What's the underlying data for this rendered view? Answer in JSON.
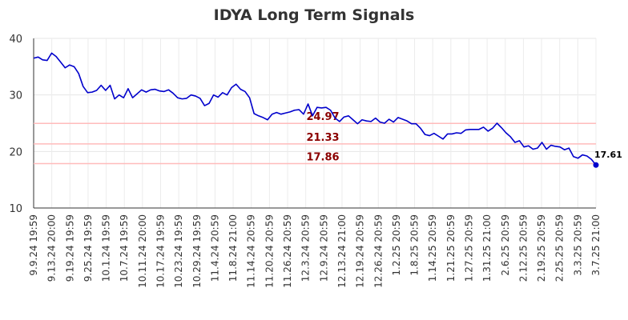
{
  "chart_data": {
    "type": "line",
    "title": "IDYA Long Term Signals",
    "xlabel": "",
    "ylabel": "",
    "ylim": [
      10,
      40
    ],
    "yticks": [
      10,
      20,
      30,
      40
    ],
    "grid": true,
    "xtick_labels": [
      "9.9.24 19:59",
      "9.13.24 20:00",
      "9.19.24 19:59",
      "9.25.24 19:59",
      "10.1.24 19:59",
      "10.7.24 19:59",
      "10.11.24 20:00",
      "10.17.24 19:59",
      "10.23.24 19:59",
      "10.29.24 19:59",
      "11.4.24 20:59",
      "11.8.24 21:00",
      "11.14.24 20:59",
      "11.20.24 20:59",
      "11.26.24 20:59",
      "12.3.24 20:59",
      "12.9.24 20:59",
      "12.13.24 21:00",
      "12.19.24 20:59",
      "12.26.24 20:59",
      "1.2.25 20:59",
      "1.8.25 20:59",
      "1.14.25 20:59",
      "1.21.25 20:59",
      "1.27.25 20:59",
      "1.31.25 21:00",
      "2.6.25 20:59",
      "2.12.25 20:59",
      "2.19.25 20:59",
      "2.25.25 20:59",
      "3.3.25 20:59",
      "3.7.25 21:00"
    ],
    "series": [
      {
        "color": "#0000cc",
        "values": [
          36.5,
          36.7,
          36.2,
          36.1,
          37.4,
          36.8,
          35.8,
          34.8,
          35.3,
          35.0,
          33.8,
          31.5,
          30.4,
          30.5,
          30.8,
          31.7,
          30.8,
          31.7,
          29.3,
          30.0,
          29.5,
          31.1,
          29.5,
          30.2,
          30.9,
          30.5,
          30.9,
          31.0,
          30.7,
          30.6,
          30.9,
          30.3,
          29.5,
          29.3,
          29.4,
          30.0,
          29.8,
          29.4,
          28.1,
          28.5,
          30.0,
          29.6,
          30.4,
          30.0,
          31.3,
          31.9,
          31.0,
          30.6,
          29.5,
          26.7,
          26.3,
          26.0,
          25.6,
          26.6,
          26.9,
          26.6,
          26.8,
          27.0,
          27.3,
          27.4,
          26.6,
          28.4,
          26.3,
          27.8,
          27.7,
          27.8,
          27.3,
          25.9,
          25.3,
          26.1,
          26.3,
          25.6,
          24.9,
          25.6,
          25.4,
          25.3,
          25.9,
          25.2,
          25.0,
          25.7,
          25.2,
          26.0,
          25.7,
          25.4,
          24.9,
          24.9,
          24.1,
          23.0,
          22.8,
          23.2,
          22.7,
          22.2,
          23.1,
          23.1,
          23.3,
          23.2,
          23.8,
          23.9,
          23.9,
          23.9,
          24.3,
          23.6,
          24.1,
          25.0,
          24.2,
          23.3,
          22.6,
          21.6,
          21.9,
          20.8,
          21.0,
          20.4,
          20.6,
          21.6,
          20.4,
          21.1,
          20.9,
          20.8,
          20.3,
          20.6,
          19.1,
          18.8,
          19.4,
          19.2,
          18.6,
          17.61
        ]
      }
    ],
    "levels": [
      {
        "value": 24.97,
        "label": "24.97"
      },
      {
        "value": 21.33,
        "label": "21.33"
      },
      {
        "value": 17.86,
        "label": "17.86"
      }
    ],
    "level_line_color": "#ffbbbb",
    "level_label_color": "#8b0000",
    "last_value": 17.61,
    "last_label": "17.61"
  }
}
